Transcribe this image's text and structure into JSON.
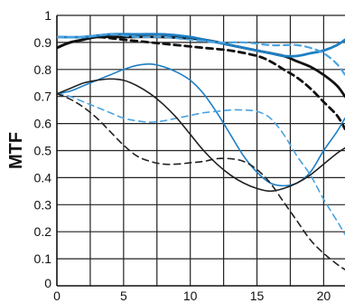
{
  "chart_data": {
    "type": "line",
    "title": "",
    "xlabel": "",
    "ylabel": "MTF",
    "xlim": [
      0,
      21.6
    ],
    "ylim": [
      0,
      1
    ],
    "grid": true,
    "x_ticks": [
      0,
      5,
      10,
      15,
      20
    ],
    "x_tick_labels": [
      "0",
      "5",
      "10",
      "15",
      "20"
    ],
    "y_ticks": [
      0.1,
      0.2,
      0.3,
      0.4,
      0.5,
      0.6,
      0.7,
      0.8,
      0.9,
      1.0
    ],
    "y_tick_labels": [
      "0.1",
      "0.2",
      "0.3",
      "0.4",
      "0.5",
      "0.6",
      "0.7",
      "0.8",
      "0.9",
      "1"
    ],
    "x_axis_zero_label": "0",
    "y_axis_zero_label": "0",
    "series": [
      {
        "color": "#111111",
        "style": "solid",
        "width": 2.8,
        "x": [
          0,
          1,
          2,
          3,
          5,
          8,
          11,
          13,
          15,
          17,
          18,
          19,
          20,
          21,
          21.6
        ],
        "values": [
          0.88,
          0.9,
          0.91,
          0.92,
          0.92,
          0.92,
          0.91,
          0.89,
          0.87,
          0.85,
          0.83,
          0.81,
          0.78,
          0.74,
          0.7
        ]
      },
      {
        "color": "#111111",
        "style": "dashed",
        "width": 2.8,
        "x": [
          0,
          1,
          2,
          3,
          5,
          7,
          9,
          11,
          13,
          15,
          16,
          17,
          18,
          19,
          20,
          21,
          21.6
        ],
        "values": [
          0.88,
          0.9,
          0.91,
          0.92,
          0.91,
          0.9,
          0.89,
          0.88,
          0.87,
          0.85,
          0.83,
          0.8,
          0.77,
          0.73,
          0.68,
          0.63,
          0.58
        ]
      },
      {
        "color": "#1e7fc4",
        "style": "solid",
        "width": 2.8,
        "x": [
          0,
          2,
          4,
          6,
          8,
          10,
          12,
          14,
          16,
          17,
          18,
          19,
          20,
          21,
          21.6
        ],
        "values": [
          0.92,
          0.92,
          0.93,
          0.93,
          0.93,
          0.92,
          0.9,
          0.88,
          0.86,
          0.85,
          0.85,
          0.86,
          0.87,
          0.89,
          0.91
        ]
      },
      {
        "color": "#4aa3e0",
        "style": "dashed",
        "width": 2.2,
        "x": [
          0,
          2,
          4,
          6,
          8,
          10,
          12,
          14,
          16,
          17,
          18,
          19,
          20,
          21,
          21.6
        ],
        "values": [
          0.92,
          0.92,
          0.93,
          0.92,
          0.92,
          0.91,
          0.9,
          0.9,
          0.89,
          0.89,
          0.89,
          0.88,
          0.86,
          0.82,
          0.78
        ]
      },
      {
        "color": "#1e7fc4",
        "style": "solid",
        "width": 1.6,
        "x": [
          0,
          1,
          2,
          3,
          4,
          5,
          6,
          7,
          8,
          9,
          10,
          11,
          12,
          13,
          14,
          15,
          16,
          17,
          18,
          19,
          20,
          21,
          21.6
        ],
        "values": [
          0.71,
          0.72,
          0.74,
          0.76,
          0.78,
          0.8,
          0.815,
          0.82,
          0.81,
          0.79,
          0.76,
          0.71,
          0.64,
          0.56,
          0.48,
          0.42,
          0.38,
          0.37,
          0.38,
          0.42,
          0.5,
          0.57,
          0.62
        ]
      },
      {
        "color": "#4aa3e0",
        "style": "dashed",
        "width": 1.6,
        "x": [
          0,
          1,
          2,
          3,
          4,
          5,
          6,
          7,
          8,
          9,
          10,
          11,
          12,
          13,
          14,
          15,
          16,
          17,
          18,
          19,
          20,
          21,
          21.6
        ],
        "values": [
          0.71,
          0.7,
          0.68,
          0.66,
          0.64,
          0.62,
          0.61,
          0.605,
          0.61,
          0.62,
          0.63,
          0.64,
          0.645,
          0.65,
          0.65,
          0.645,
          0.62,
          0.56,
          0.48,
          0.41,
          0.32,
          0.24,
          0.19
        ]
      },
      {
        "color": "#222222",
        "style": "solid",
        "width": 1.6,
        "x": [
          0,
          1,
          2,
          3,
          4,
          5,
          6,
          7,
          8,
          9,
          10,
          11,
          12,
          13,
          14,
          15,
          16,
          17,
          18,
          19,
          20,
          21,
          21.6
        ],
        "values": [
          0.71,
          0.73,
          0.75,
          0.76,
          0.765,
          0.76,
          0.74,
          0.71,
          0.67,
          0.62,
          0.56,
          0.5,
          0.45,
          0.41,
          0.38,
          0.36,
          0.35,
          0.36,
          0.38,
          0.41,
          0.45,
          0.49,
          0.51
        ]
      },
      {
        "color": "#222222",
        "style": "dashed",
        "width": 1.6,
        "x": [
          0,
          1,
          2,
          3,
          4,
          5,
          6,
          7,
          8,
          9,
          10,
          11,
          12,
          13,
          14,
          15,
          16,
          17,
          18,
          19,
          20,
          21,
          21.6
        ],
        "values": [
          0.71,
          0.69,
          0.66,
          0.62,
          0.57,
          0.52,
          0.48,
          0.46,
          0.45,
          0.45,
          0.455,
          0.46,
          0.47,
          0.47,
          0.46,
          0.43,
          0.38,
          0.31,
          0.24,
          0.17,
          0.12,
          0.08,
          0.06
        ]
      }
    ]
  }
}
